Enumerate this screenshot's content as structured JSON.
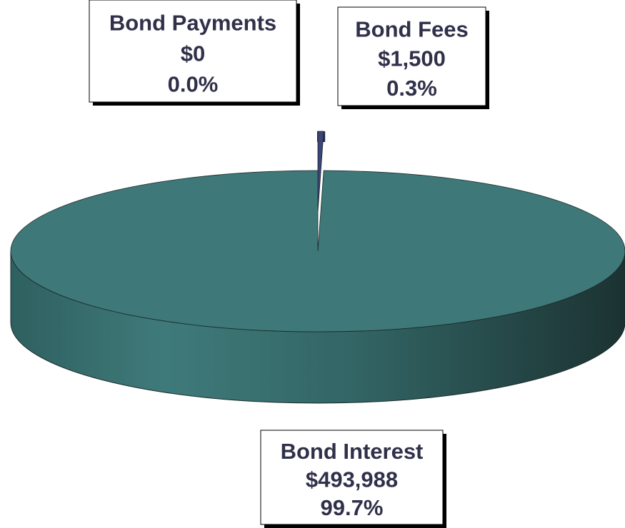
{
  "chart_data": {
    "type": "pie",
    "categories": [
      "Bond Payments",
      "Bond Fees",
      "Bond Interest"
    ],
    "values": [
      0,
      1500,
      493988
    ],
    "value_labels": [
      "$0",
      "$1,500",
      "$493,988"
    ],
    "percent_labels": [
      "0.0%",
      "0.3%",
      "99.7%"
    ],
    "colors": [
      "#8a8ac8",
      "#3c4478",
      "#3f7878"
    ],
    "exploded": [
      false,
      true,
      false
    ]
  }
}
